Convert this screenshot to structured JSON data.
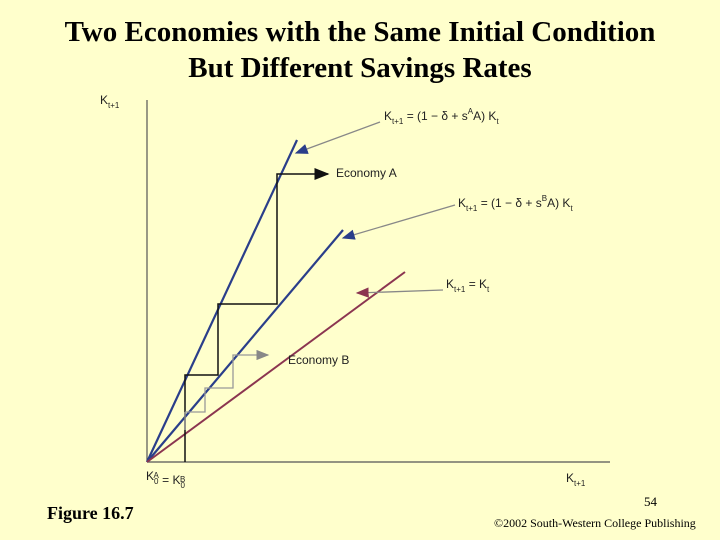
{
  "header": {
    "title": [
      "Two Economies with the Same Initial Condition",
      "But Different Savings Rates"
    ]
  },
  "labels": [
    {
      "parts": [
        {
          "text": "K"
        },
        {
          "text": "t+1",
          "pos": "sub"
        }
      ]
    },
    {
      "parts": [
        {
          "text": "K"
        },
        {
          "text": "t+1",
          "pos": "sub"
        },
        {
          "text": " = (1 − δ + s"
        },
        {
          "text": "A",
          "pos": "sup"
        },
        {
          "text": "A) K"
        },
        {
          "text": "t",
          "pos": "sub"
        }
      ]
    },
    {
      "parts": [
        {
          "text": "Economy A"
        }
      ]
    },
    {
      "parts": [
        {
          "text": "K"
        },
        {
          "text": "t+1",
          "pos": "sub"
        },
        {
          "text": " = (1 − δ + s"
        },
        {
          "text": "B",
          "pos": "sup"
        },
        {
          "text": "A) K"
        },
        {
          "text": "t",
          "pos": "sub"
        }
      ]
    },
    {
      "parts": [
        {
          "text": "K"
        },
        {
          "text": "t+1",
          "pos": "sub"
        },
        {
          "text": " = K"
        },
        {
          "text": "t",
          "pos": "sub"
        }
      ]
    },
    {
      "parts": [
        {
          "text": "Economy B"
        }
      ]
    },
    {
      "parts": [
        {
          "text": "K"
        },
        {
          "text": "0",
          "pos": "sub"
        },
        {
          "text": "A",
          "pos": "sup"
        },
        {
          "text": " = K"
        },
        {
          "text": "0",
          "pos": "sub"
        },
        {
          "text": "B",
          "pos": "sup"
        }
      ]
    },
    {
      "parts": [
        {
          "text": "K"
        },
        {
          "text": "t+1",
          "pos": "sub"
        }
      ]
    }
  ],
  "footer": {
    "figure": "Figure 16.7",
    "page": "54",
    "copyright": "©2002 South-Western College Publishing"
  }
}
